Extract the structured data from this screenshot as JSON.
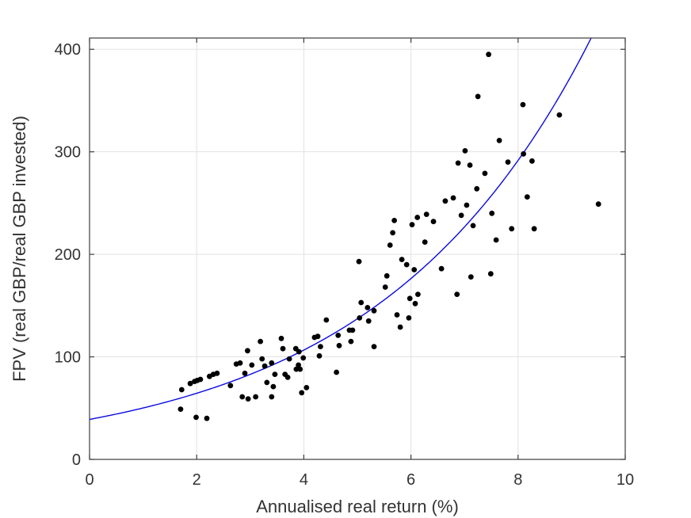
{
  "figure": {
    "background_color": "#ffffff",
    "frame_color": "#3d3d3d",
    "grid_color": "#e2e2e2",
    "text_color": "#333333"
  },
  "chart_data": {
    "type": "scatter",
    "title": "",
    "xlabel": "Annualised real return (%)",
    "ylabel": "FPV (real GBP/real GBP invested)",
    "xlim": [
      0,
      10
    ],
    "ylim": [
      0,
      411
    ],
    "x_ticks": [
      0,
      2,
      4,
      6,
      8,
      10
    ],
    "x_tick_labels": [
      "0",
      "2",
      "4",
      "6",
      "8",
      "10"
    ],
    "y_ticks": [
      0,
      100,
      200,
      300,
      400
    ],
    "y_tick_labels": [
      "0",
      "100",
      "200",
      "300",
      "400"
    ],
    "grid": true,
    "legend": null,
    "series": [
      {
        "name": "scatter-observations",
        "type": "scatter",
        "marker": "point",
        "color": "#000000",
        "points": [
          [
            1.7,
            49
          ],
          [
            1.72,
            68
          ],
          [
            1.88,
            74
          ],
          [
            1.96,
            76
          ],
          [
            1.99,
            41
          ],
          [
            2.01,
            77
          ],
          [
            2.07,
            78
          ],
          [
            2.19,
            40
          ],
          [
            2.24,
            81
          ],
          [
            2.31,
            83
          ],
          [
            2.38,
            84
          ],
          [
            2.63,
            72
          ],
          [
            2.74,
            93
          ],
          [
            2.81,
            94
          ],
          [
            2.85,
            61
          ],
          [
            2.9,
            84
          ],
          [
            2.95,
            106
          ],
          [
            2.96,
            59
          ],
          [
            3.03,
            92
          ],
          [
            3.1,
            61
          ],
          [
            3.19,
            115
          ],
          [
            3.22,
            98
          ],
          [
            3.27,
            91
          ],
          [
            3.31,
            75
          ],
          [
            3.4,
            94
          ],
          [
            3.4,
            61
          ],
          [
            3.43,
            71
          ],
          [
            3.46,
            83
          ],
          [
            3.58,
            118
          ],
          [
            3.61,
            108
          ],
          [
            3.65,
            83
          ],
          [
            3.7,
            80
          ],
          [
            3.73,
            98
          ],
          [
            3.85,
            108
          ],
          [
            3.86,
            88
          ],
          [
            3.9,
            92
          ],
          [
            3.91,
            105
          ],
          [
            3.93,
            88
          ],
          [
            3.96,
            65
          ],
          [
            3.99,
            99
          ],
          [
            4.05,
            70
          ],
          [
            4.2,
            119
          ],
          [
            4.26,
            120
          ],
          [
            4.29,
            101
          ],
          [
            4.31,
            110
          ],
          [
            4.42,
            136
          ],
          [
            4.61,
            85
          ],
          [
            4.64,
            121
          ],
          [
            4.66,
            111
          ],
          [
            4.85,
            126
          ],
          [
            4.88,
            115
          ],
          [
            4.91,
            126
          ],
          [
            5.03,
            193
          ],
          [
            5.04,
            138
          ],
          [
            5.07,
            153
          ],
          [
            5.19,
            148
          ],
          [
            5.21,
            135
          ],
          [
            5.31,
            145
          ],
          [
            5.31,
            110
          ],
          [
            5.52,
            168
          ],
          [
            5.55,
            179
          ],
          [
            5.61,
            209
          ],
          [
            5.66,
            221
          ],
          [
            5.69,
            233
          ],
          [
            5.74,
            141
          ],
          [
            5.8,
            129
          ],
          [
            5.83,
            195
          ],
          [
            5.92,
            190
          ],
          [
            5.96,
            138
          ],
          [
            5.98,
            157
          ],
          [
            6.02,
            229
          ],
          [
            6.06,
            185
          ],
          [
            6.08,
            152
          ],
          [
            6.12,
            236
          ],
          [
            6.13,
            161
          ],
          [
            6.26,
            212
          ],
          [
            6.29,
            239
          ],
          [
            6.42,
            232
          ],
          [
            6.57,
            186
          ],
          [
            6.64,
            252
          ],
          [
            6.79,
            255
          ],
          [
            6.86,
            161
          ],
          [
            6.88,
            289
          ],
          [
            6.94,
            238
          ],
          [
            7.01,
            301
          ],
          [
            7.04,
            248
          ],
          [
            7.1,
            287
          ],
          [
            7.12,
            178
          ],
          [
            7.16,
            228
          ],
          [
            7.23,
            264
          ],
          [
            7.25,
            354
          ],
          [
            7.38,
            279
          ],
          [
            7.45,
            395
          ],
          [
            7.49,
            181
          ],
          [
            7.51,
            240
          ],
          [
            7.59,
            214
          ],
          [
            7.65,
            311
          ],
          [
            7.81,
            290
          ],
          [
            7.88,
            225
          ],
          [
            8.09,
            346
          ],
          [
            8.1,
            298
          ],
          [
            8.17,
            256
          ],
          [
            8.26,
            291
          ],
          [
            8.3,
            225
          ],
          [
            8.77,
            336
          ],
          [
            9.5,
            249
          ]
        ]
      },
      {
        "name": "exponential-fit-curve",
        "type": "line",
        "color": "#0a0ae0",
        "model_form": "y = a*exp(b*x)",
        "a": 39,
        "b": 0.2515,
        "x_range": [
          0,
          10
        ]
      }
    ]
  }
}
